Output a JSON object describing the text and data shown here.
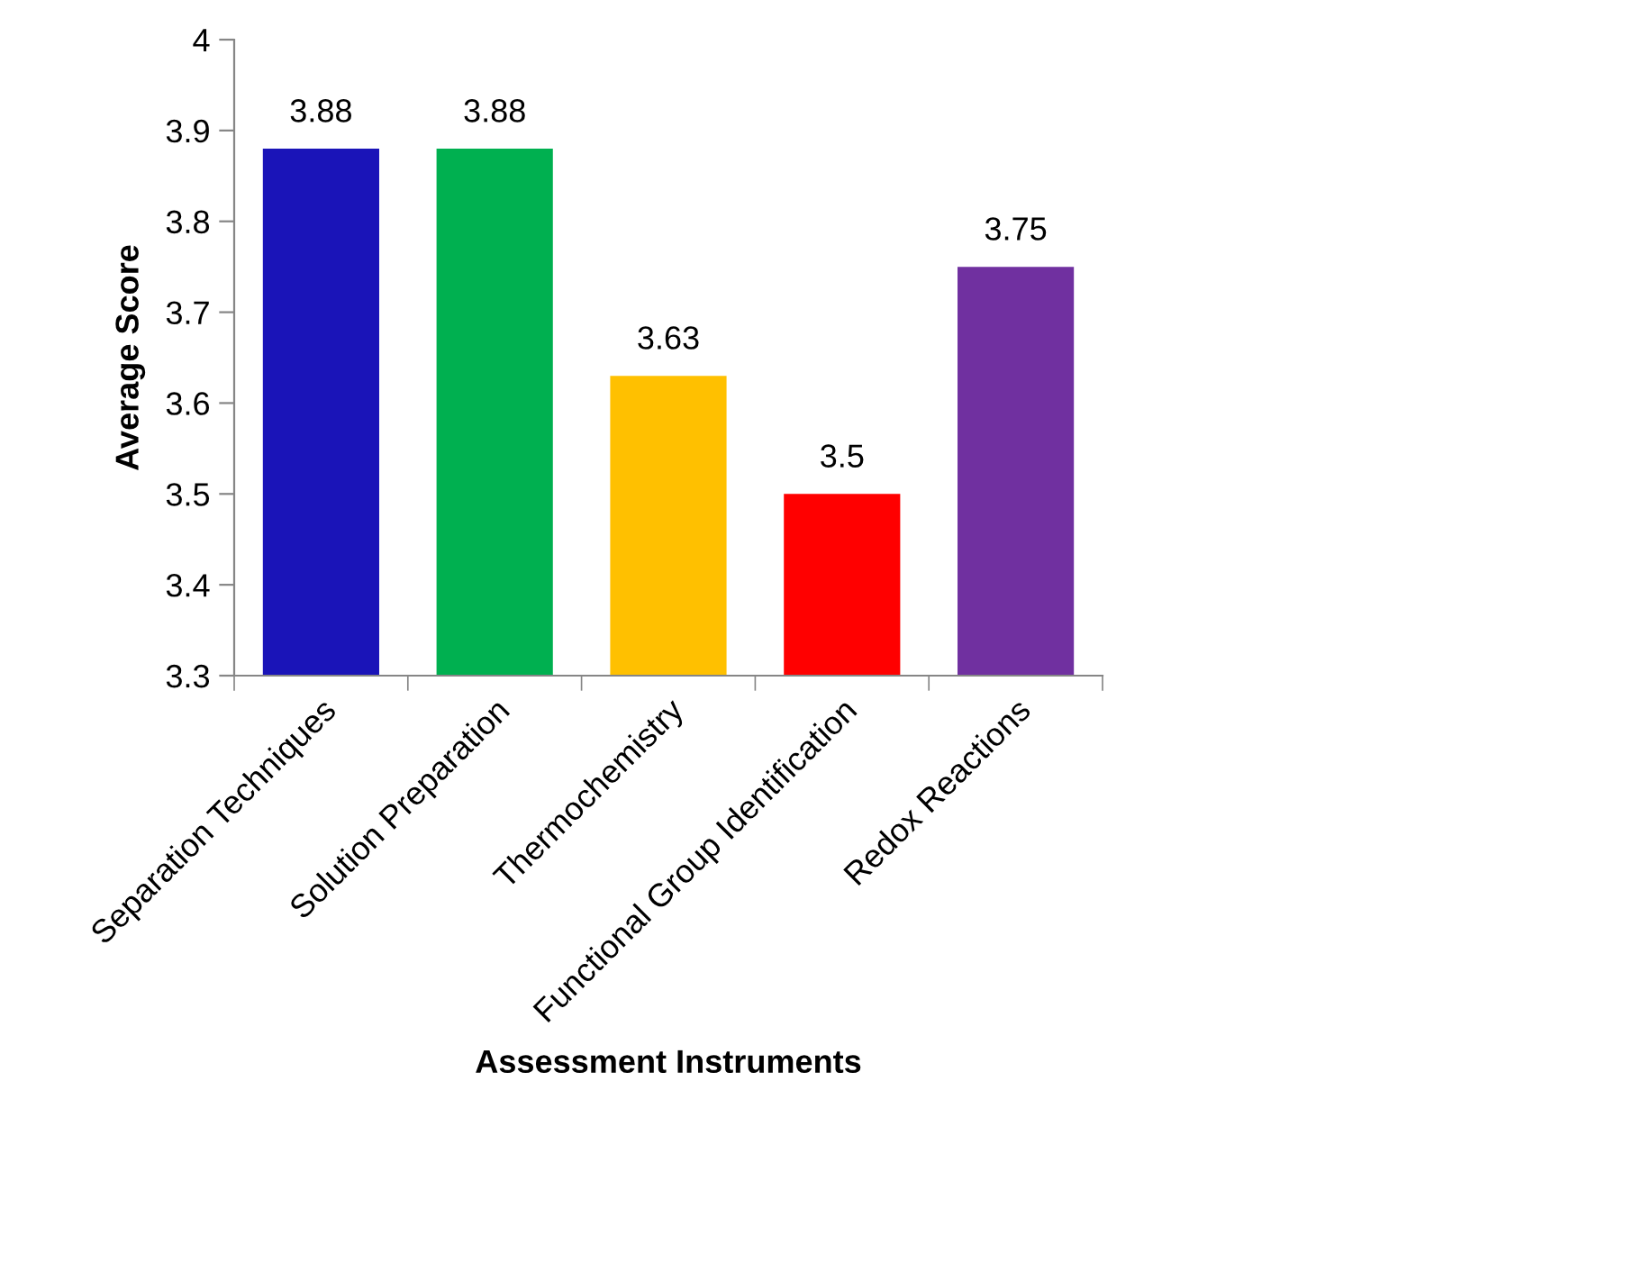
{
  "chart_data": {
    "type": "bar",
    "xlabel": "Assessment Instruments",
    "ylabel": "Average Score",
    "categories": [
      "Separation Techniques",
      "Solution Preparation",
      "Thermochemistry",
      "Functional Group Identification",
      "Redox Reactions"
    ],
    "values": [
      3.88,
      3.88,
      3.63,
      3.5,
      3.75
    ],
    "colors": [
      "#1a14b8",
      "#00b050",
      "#ffc000",
      "#ff0000",
      "#7030a0"
    ],
    "ylim": [
      3.3,
      4
    ],
    "yticks": [
      3.3,
      3.4,
      3.5,
      3.6,
      3.7,
      3.8,
      3.9,
      4
    ],
    "data_labels": true,
    "grid": false,
    "legend": false
  }
}
